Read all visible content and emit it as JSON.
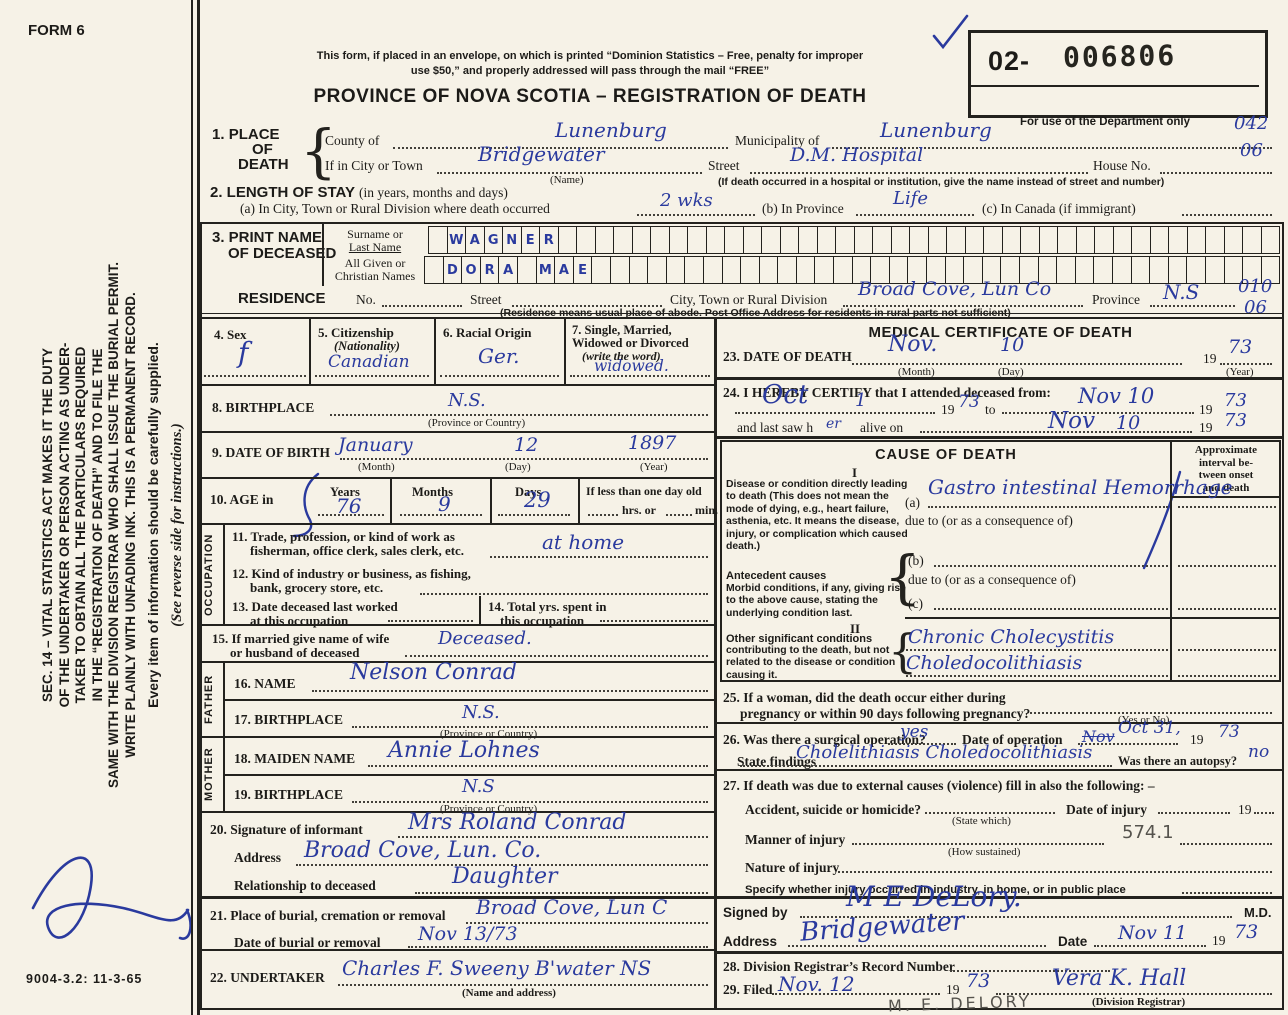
{
  "colors": {
    "ink_blue": "#2a3a9e",
    "pencil_gray": "#55534d",
    "paper": "#f6f2e7"
  },
  "page": {
    "form_no": "FORM 6",
    "print_code": "9004-3.2: 11-3-65"
  },
  "header": {
    "mail_line1": "This form, if placed in an envelope, on which is printed “Dominion Statistics – Free, penalty for improper",
    "mail_line2": "use $50,” and properly addressed will pass through the mail “FREE”",
    "title": "PROVINCE OF NOVA SCOTIA – REGISTRATION OF DEATH",
    "serial_prefix": "02-",
    "serial_number": "006806",
    "dept_note": "For use of the Department only"
  },
  "sidebar": {
    "duty_lines": [
      "SEC. 14 – VITAL STATISTICS ACT MAKES IT THE DUTY",
      "OF THE UNDERTAKER OR PERSON ACTING AS UNDER-",
      "TAKER TO OBTAIN ALL THE PARTICULARS REQUIRED",
      "IN THE “REGISTRATION OF DEATH” AND TO FILE THE",
      "SAME WITH THE DIVISION REGISTRAR WHO SHALL ISSUE THE BURIAL PERMIT.",
      "WRITE PLAINLY WITH UNFADING INK. THIS IS A PERMANENT RECORD."
    ],
    "supply_note": "Every item of information should be carefully supplied.",
    "reverse_note": "(See reverse side for instructions.)"
  },
  "s1": {
    "num": "1.",
    "label1": "PLACE",
    "label2": "OF",
    "label3": "DEATH",
    "county_label": "County of",
    "county_value": "Lunenburg",
    "municipality_label": "Municipality of",
    "municipality_value": "Lunenburg",
    "code_right": "042",
    "city_label": "If in City or Town",
    "city_value": "Bridgewater",
    "city_sub": "(Name)",
    "street_label": "Street",
    "street_value": "D.M. Hospital",
    "house_label": "House No.",
    "house_value": "06",
    "hospital_note": "(If death occurred in a hospital or institution, give the name instead of street and number)"
  },
  "s2": {
    "title": "2. LENGTH OF STAY",
    "title_paren": "(in years, months and days)",
    "a_label": "(a) In City, Town or Rural Division where death occurred",
    "a_value": "2 wks",
    "b_label": "(b) In Province",
    "b_value": "Life",
    "c_label": "(c) In Canada (if immigrant)"
  },
  "s3": {
    "num_label1": "3. PRINT NAME",
    "num_label2": "OF DECEASED",
    "surname_label1": "Surname or",
    "surname_label2": "Last Name",
    "given_label1": "All Given or",
    "given_label2": "Christian Names",
    "surname_boxes": " WAGNER",
    "given_boxes": " DORA MAE"
  },
  "residence": {
    "label": "RESIDENCE",
    "no_label": "No.",
    "street_label": "Street",
    "city_label": "City, Town or Rural Division",
    "city_value": "Broad Cove, Lun Co",
    "province_label": "Province",
    "province_value": "N.S",
    "code1": "010",
    "code2": "06",
    "note": "(Residence means usual place of abode. Post Office Address for residents in rural parts not sufficient)"
  },
  "s4": {
    "label": "4. Sex",
    "value": "f"
  },
  "s5": {
    "label": "5. Citizenship",
    "label2": "(Nationality)",
    "value": "Canadian"
  },
  "s6": {
    "label": "6. Racial Origin",
    "value": "Ger."
  },
  "s7": {
    "label": "7. Single, Married,",
    "label2": "Widowed or Divorced",
    "label3": "(write the word)",
    "value": "widowed."
  },
  "s8": {
    "label": "8. BIRTHPLACE",
    "value": "N.S.",
    "sub": "(Province or Country)"
  },
  "s9": {
    "label": "9. DATE OF BIRTH",
    "month_value": "January",
    "month_sub": "(Month)",
    "day_value": "12",
    "day_sub": "(Day)",
    "year_value": "1897",
    "year_sub": "(Year)"
  },
  "s10": {
    "label": "10. AGE in",
    "years_label": "Years",
    "years_value": "76",
    "months_label": "Months",
    "months_value": "9",
    "days_label": "Days",
    "days_value": "29",
    "less_label": "If less than one day old",
    "hrs_label": "hrs. or",
    "min_label": "min."
  },
  "occupation": {
    "side_label": "OCCUPATION",
    "l11a": "11. Trade, profession, or kind of work as",
    "l11b": "fisherman, office clerk, sales clerk, etc.",
    "v11": "at home",
    "l12a": "12. Kind of industry or business, as fishing,",
    "l12b": "bank, grocery store, etc.",
    "l13a": "13. Date deceased last worked",
    "l13b": "at this occupation",
    "l14a": "14. Total yrs. spent in",
    "l14b": "this occupation"
  },
  "s15": {
    "label1": "15. If married give name of wife",
    "label2": "or husband of deceased",
    "value": "Deceased."
  },
  "father": {
    "side_label": "FATHER",
    "name_label": "16. NAME",
    "name_value": "Nelson Conrad",
    "bp_label": "17. BIRTHPLACE",
    "bp_value": "N.S.",
    "bp_sub": "(Province or Country)"
  },
  "mother": {
    "side_label": "MOTHER",
    "name_label": "18. MAIDEN NAME",
    "name_value": "Annie Lohnes",
    "bp_label": "19. BIRTHPLACE",
    "bp_value": "N.S",
    "bp_sub": "(Province or Country)"
  },
  "s20": {
    "label": "20. Signature of informant",
    "value": "Mrs Roland Conrad",
    "addr_label": "Address",
    "addr_value": "Broad Cove, Lun. Co.",
    "rel_label": "Relationship to deceased",
    "rel_value": "Daughter"
  },
  "s21": {
    "label": "21. Place of burial, cremation or removal",
    "value": "Broad Cove, Lun C",
    "date_label": "Date of burial or removal",
    "date_value": "Nov 13/73"
  },
  "s22": {
    "label": "22. UNDERTAKER",
    "value": "Charles F. Sweeny B'water NS",
    "sub": "(Name and address)"
  },
  "med": {
    "title": "MEDICAL CERTIFICATE OF DEATH",
    "s23": {
      "label": "23. DATE OF DEATH",
      "month_value": "Nov.",
      "month_sub": "(Month)",
      "day_value": "10",
      "day_sub": "(Day)",
      "year_prefix": "19",
      "year_value": "73",
      "year_sub": "(Year)"
    },
    "s24": {
      "label": "24. I HEREBY CERTIFY that I attended deceased from:",
      "from_month": "Oct",
      "from_day": "1",
      "from_year_prefix": "19",
      "from_year": "73",
      "to_label": "to",
      "to_value": "Nov 10",
      "to_year_prefix": "19",
      "to_year": "73",
      "saw_label1": "and last saw h",
      "saw_fill": "er",
      "saw_label2": "alive on",
      "saw_value": "Nov",
      "saw_day": "10",
      "saw_year_prefix": "19",
      "saw_year": "73"
    },
    "cause": {
      "title": "CAUSE OF DEATH",
      "interval1": "Approximate",
      "interval2": "interval be-",
      "interval3": "tween onset",
      "interval4": "and death",
      "part1": "I",
      "disease_text": "Disease or condition directly leading to death (This does not mean the mode of dying, e.g., heart failure, asthenia, etc. It means the disease, injury, or complication which caused death.)",
      "a_label": "(a)",
      "a_value": "Gastro intestinal Hemorrhage",
      "due_label": "due to (or as a consequence of)",
      "antecedent_title": "Antecedent causes",
      "antecedent_text": "Morbid conditions, if any, giving rise to the above cause, stating the underlying condition last.",
      "b_label": "(b)",
      "c_label": "(c)",
      "part2": "II",
      "other_title": "Other significant conditions",
      "other_text": "contributing to the death, but not related to the disease or condition causing it.",
      "other_value1": "Chronic Cholecystitis",
      "other_value2": "Choledocolithiasis"
    },
    "s25": {
      "label1": "25. If a woman, did the death occur either during",
      "label2": "pregnancy or within 90 days following pregnancy?",
      "sub": "(Yes or No)"
    },
    "s26": {
      "label": "26. Was there a surgical operation?",
      "value": "yes",
      "date_label": "Date of operation",
      "date_struck": "Nov",
      "date_value": "Oct 31,",
      "year_prefix": "19",
      "year_value": "73",
      "findings_label": "State findings",
      "findings_value": "Cholelithiasis  Choledocolithiasis",
      "autopsy_label": "Was there an autopsy?",
      "autopsy_value": "no"
    },
    "s27": {
      "label": "27. If death was due to external causes (violence) fill in also the following: –",
      "acc_label": "Accident, suicide or homicide?",
      "acc_sub": "(State which)",
      "injury_date_label": "Date of injury",
      "injury_19": "19",
      "manner_label": "Manner of injury",
      "manner_sub": "(How sustained)",
      "code_value": "574.1",
      "nature_label": "Nature of injury",
      "specify_label": "Specify whether injury occurred in industry, in home, or in public place"
    },
    "signed": {
      "label": "Signed by",
      "value": "M E DeLory.",
      "md": "M.D.",
      "addr_label": "Address",
      "addr_value": "Bridgewater",
      "date_label": "Date",
      "date_value": "Nov 11",
      "year_prefix": "19",
      "year_value": "73"
    },
    "s28": {
      "label": "28. Division Registrar’s Record Number"
    },
    "s29": {
      "label": "29. Filed",
      "date_value": "Nov. 12",
      "year_prefix": "19",
      "year_value": "73",
      "registrar_value": "Vera K. Hall",
      "sub": "(Division Registrar)",
      "pencil_name": "M. E. DELORY"
    }
  }
}
